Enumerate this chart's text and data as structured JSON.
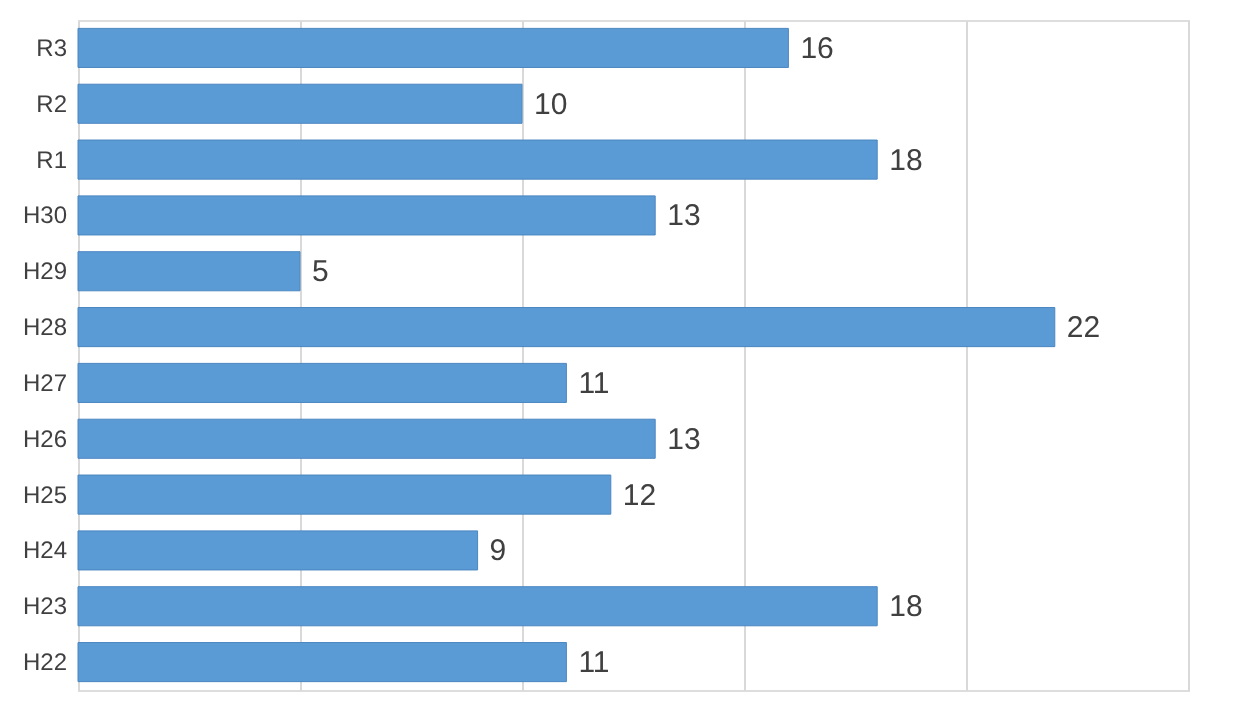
{
  "chart_data": {
    "type": "bar",
    "orientation": "horizontal",
    "categories": [
      "R3",
      "R2",
      "R1",
      "H30",
      "H29",
      "H28",
      "H27",
      "H26",
      "H25",
      "H24",
      "H23",
      "H22"
    ],
    "values": [
      16,
      10,
      18,
      13,
      5,
      22,
      11,
      13,
      12,
      9,
      18,
      11
    ],
    "color": "#5b9bd5",
    "data_labels": true,
    "xlim": [
      0,
      25
    ],
    "xticks": [
      {
        "value": 0,
        "label": null
      },
      {
        "value": 5,
        "label": null
      },
      {
        "value": 10,
        "label": null
      },
      {
        "value": 15,
        "label": null
      },
      {
        "value": 20,
        "label": null
      },
      {
        "value": 25,
        "label": null
      }
    ],
    "grid": "x",
    "tick_labels": "y"
  }
}
